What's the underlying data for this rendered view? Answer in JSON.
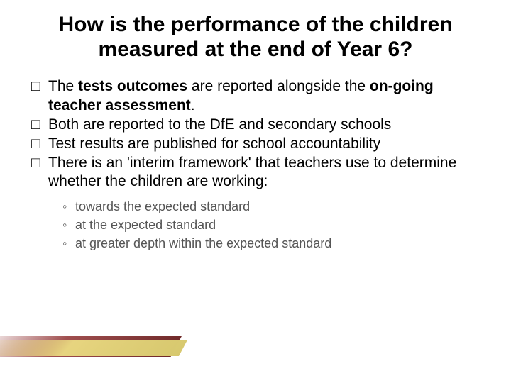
{
  "title": {
    "text": "How is the performance of the children measured at the end of Year 6?",
    "fontsize": 30,
    "color": "#000000"
  },
  "bullets": {
    "fontsize": 21,
    "color": "#000000",
    "checkbox_char": "□",
    "items": [
      {
        "prefix": "The ",
        "bold1": "tests outcomes",
        "mid": " are reported alongside the ",
        "bold2": "on-going teacher assessment",
        "suffix": "."
      },
      {
        "plain": "Both are reported to the DfE and secondary schools"
      },
      {
        "plain": "Test results are published for school accountability"
      },
      {
        "plain": "There is an 'interim framework' that teachers use to determine whether the children are working:"
      }
    ]
  },
  "sublist": {
    "fontsize": 18,
    "color": "#555555",
    "marker": "◦",
    "items": [
      "towards the expected standard",
      "at the expected standard",
      "at greater depth within the expected standard"
    ]
  },
  "accent": {
    "dark_color": "#7d2e2e",
    "light_color": "#e7da8a"
  }
}
